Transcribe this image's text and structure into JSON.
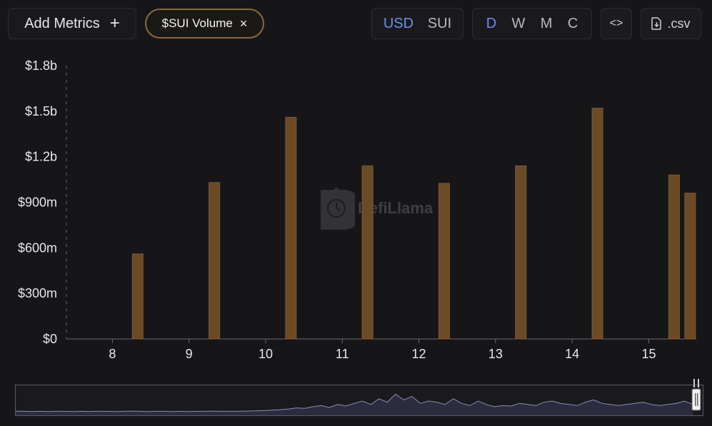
{
  "toolbar": {
    "add_metrics_label": "Add Metrics",
    "add_icon": "+",
    "metric_chip_label": "$SUI Volume",
    "metric_chip_close": "×",
    "currency": {
      "options": [
        "USD",
        "SUI"
      ],
      "selected": "USD"
    },
    "period": {
      "options": [
        "D",
        "W",
        "M",
        "C"
      ],
      "selected": "D"
    },
    "embed_label": "<>",
    "csv_label": ".csv"
  },
  "colors": {
    "bar": "#6b4a26",
    "bar_edge": "#7c5a30",
    "active": "#6f8ef0"
  },
  "watermark": "DefiLlama",
  "chart_data": {
    "type": "bar",
    "ylim": [
      0,
      1800000000
    ],
    "yticks": [
      0,
      300000000,
      600000000,
      900000000,
      1200000000,
      1500000000,
      1800000000
    ],
    "ytick_labels": [
      "$0",
      "$300m",
      "$600m",
      "$900m",
      "$1.2b",
      "$1.5b",
      "$1.8b"
    ],
    "xlim": [
      7.4,
      15.62
    ],
    "xticks": [
      8,
      9,
      10,
      11,
      12,
      13,
      14,
      15
    ],
    "xtick_labels": [
      "8",
      "9",
      "10",
      "11",
      "12",
      "13",
      "14",
      "15"
    ],
    "x": [
      8.33,
      9.33,
      10.33,
      11.33,
      12.33,
      13.33,
      14.33,
      15.33,
      15.54
    ],
    "values": [
      560000000,
      1030000000,
      1460000000,
      1140000000,
      1025000000,
      1140000000,
      1520000000,
      1080000000,
      960000000
    ],
    "grid": false
  },
  "brush": {
    "overview": [
      0.06,
      0.05,
      0.04,
      0.05,
      0.04,
      0.05,
      0.05,
      0.04,
      0.05,
      0.04,
      0.05,
      0.05,
      0.04,
      0.05,
      0.06,
      0.05,
      0.04,
      0.05,
      0.05,
      0.04,
      0.05,
      0.04,
      0.05,
      0.05,
      0.06,
      0.05,
      0.05,
      0.05,
      0.06,
      0.07,
      0.08,
      0.1,
      0.12,
      0.15,
      0.2,
      0.18,
      0.25,
      0.3,
      0.22,
      0.35,
      0.28,
      0.4,
      0.5,
      0.35,
      0.6,
      0.45,
      0.8,
      0.55,
      0.7,
      0.4,
      0.5,
      0.45,
      0.35,
      0.6,
      0.4,
      0.3,
      0.5,
      0.35,
      0.25,
      0.3,
      0.28,
      0.4,
      0.35,
      0.3,
      0.45,
      0.5,
      0.4,
      0.35,
      0.3,
      0.45,
      0.55,
      0.4,
      0.35,
      0.3,
      0.35,
      0.4,
      0.45,
      0.35,
      0.3,
      0.35,
      0.4,
      0.5,
      0.35
    ]
  }
}
